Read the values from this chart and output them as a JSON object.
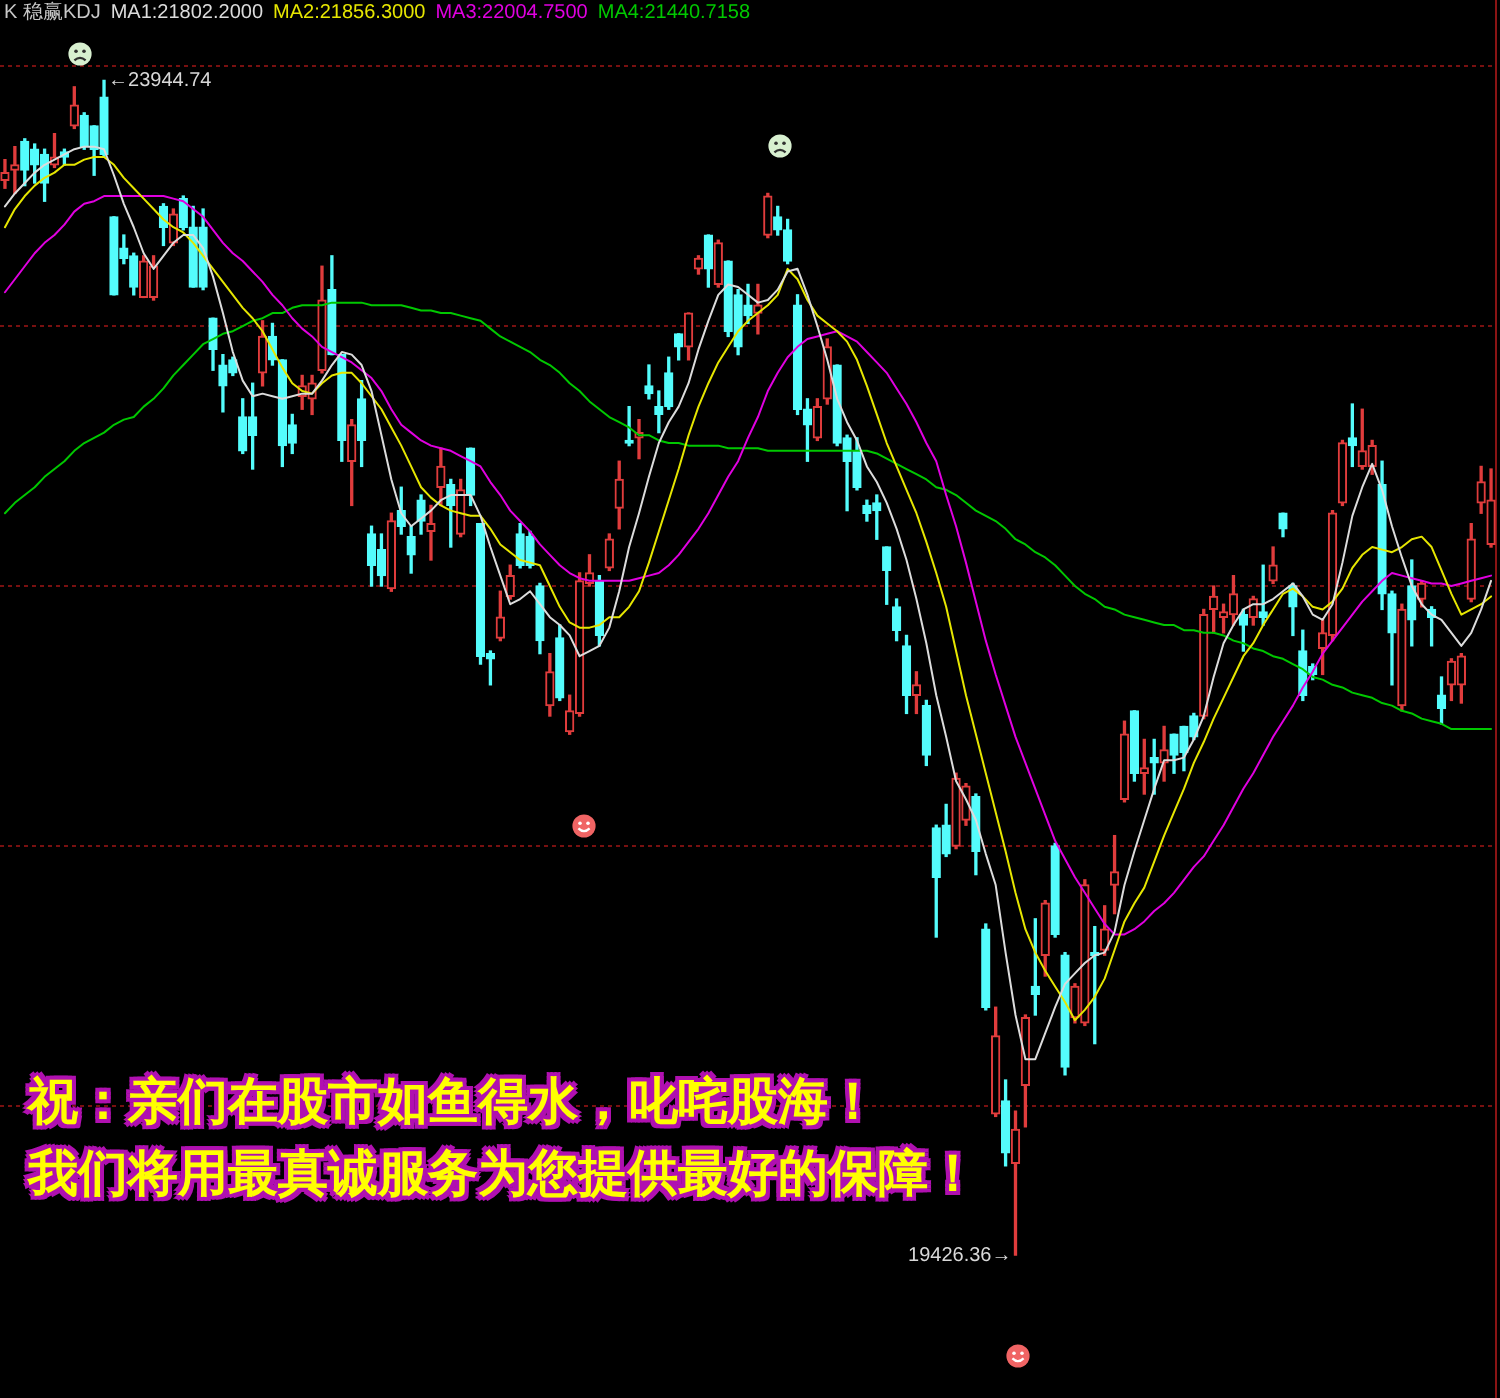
{
  "chart_data": {
    "type": "candlestick",
    "title": "K 稳赢KDJ",
    "categories": [
      null,
      null,
      null,
      null,
      null,
      null,
      null,
      null,
      null,
      null,
      null,
      null,
      null,
      null,
      null,
      null,
      null,
      null,
      null,
      null,
      null,
      null,
      null,
      null,
      null,
      null,
      null,
      null,
      null,
      null,
      null,
      null,
      null,
      null,
      null,
      null,
      null,
      null,
      null,
      null,
      null,
      null,
      null,
      null,
      null,
      null,
      null,
      null,
      null,
      null,
      null,
      null,
      null,
      null,
      null,
      null,
      null,
      null,
      null,
      null,
      null,
      null,
      null,
      null,
      null,
      null,
      null,
      null,
      null,
      null,
      null,
      null,
      null,
      null,
      null,
      null,
      null,
      null,
      null,
      null,
      null,
      null,
      null,
      null,
      null,
      null,
      null,
      null,
      null,
      null,
      null,
      null,
      null,
      null,
      null,
      null,
      null,
      null,
      null,
      null,
      null,
      null,
      null,
      null,
      null,
      null,
      null,
      null,
      null,
      null,
      null,
      null,
      null,
      null,
      null,
      null,
      null,
      null,
      null,
      null,
      null,
      null,
      null,
      null,
      null,
      null,
      null,
      null,
      null,
      null,
      null,
      null,
      null,
      null,
      null,
      null,
      null,
      null,
      null,
      null,
      null,
      null,
      null,
      null,
      null,
      null,
      null,
      null,
      null,
      null,
      null
    ],
    "ohlc": [
      [
        23560,
        23640,
        23530,
        23590
      ],
      [
        23600,
        23690,
        23510,
        23620
      ],
      [
        23710,
        23720,
        23540,
        23600
      ],
      [
        23680,
        23700,
        23550,
        23620
      ],
      [
        23660,
        23680,
        23480,
        23550
      ],
      [
        23620,
        23740,
        23610,
        23650
      ],
      [
        23670,
        23680,
        23620,
        23650
      ],
      [
        23770,
        23920,
        23760,
        23850
      ],
      [
        23810,
        23820,
        23680,
        23690
      ],
      [
        23770,
        23770,
        23580,
        23680
      ],
      [
        23880,
        23944.74,
        23650,
        23660
      ],
      [
        23420,
        23420,
        23120,
        23120
      ],
      [
        23300,
        23350,
        23240,
        23260
      ],
      [
        23270,
        23280,
        23120,
        23150
      ],
      [
        23110,
        23270,
        23110,
        23250
      ],
      [
        23110,
        23270,
        23100,
        23230
      ],
      [
        23460,
        23470,
        23310,
        23380
      ],
      [
        23320,
        23450,
        23310,
        23430
      ],
      [
        23490,
        23500,
        23370,
        23380
      ],
      [
        23380,
        23460,
        23150,
        23150
      ],
      [
        23380,
        23450,
        23140,
        23150
      ],
      [
        23030,
        23030,
        22830,
        22910
      ],
      [
        22850,
        22890,
        22670,
        22770
      ],
      [
        22870,
        22880,
        22810,
        22820
      ],
      [
        22650,
        22720,
        22510,
        22520
      ],
      [
        22650,
        22780,
        22450,
        22580
      ],
      [
        22820,
        23020,
        22770,
        22960
      ],
      [
        22960,
        23010,
        22850,
        22870
      ],
      [
        22870,
        22870,
        22460,
        22540
      ],
      [
        22620,
        22660,
        22510,
        22550
      ],
      [
        22730,
        22810,
        22680,
        22770
      ],
      [
        22720,
        22810,
        22660,
        22780
      ],
      [
        22830,
        23230,
        22820,
        23100
      ],
      [
        23140,
        23270,
        22890,
        22890
      ],
      [
        22890,
        22890,
        22480,
        22560
      ],
      [
        22480,
        22640,
        22310,
        22620
      ],
      [
        22720,
        22790,
        22460,
        22560
      ],
      [
        22200,
        22230,
        22000,
        22080
      ],
      [
        22140,
        22200,
        22000,
        22040
      ],
      [
        21990,
        22280,
        21980,
        22250
      ],
      [
        22290,
        22380,
        22200,
        22230
      ],
      [
        22190,
        22230,
        22050,
        22120
      ],
      [
        22330,
        22350,
        22200,
        22250
      ],
      [
        22210,
        22310,
        22100,
        22240
      ],
      [
        22380,
        22530,
        22310,
        22460
      ],
      [
        22390,
        22410,
        22150,
        22310
      ],
      [
        22200,
        22410,
        22190,
        22370
      ],
      [
        22530,
        22530,
        22310,
        22350
      ],
      [
        22240,
        22240,
        21700,
        21730
      ],
      [
        21740,
        21750,
        21620,
        21720
      ],
      [
        21800,
        21980,
        21790,
        21880
      ],
      [
        21960,
        22080,
        21950,
        22040
      ],
      [
        22200,
        22240,
        22070,
        22080
      ],
      [
        22190,
        22210,
        22070,
        22080
      ],
      [
        22000,
        22010,
        21740,
        21790
      ],
      [
        21540,
        21740,
        21500,
        21670
      ],
      [
        21800,
        21850,
        21560,
        21570
      ],
      [
        21440,
        21580,
        21430,
        21520
      ],
      [
        21510,
        22050,
        21500,
        22020
      ],
      [
        22010,
        22120,
        22000,
        22050
      ],
      [
        22020,
        22040,
        21770,
        21810
      ],
      [
        22070,
        22200,
        22060,
        22180
      ],
      [
        22300,
        22480,
        22220,
        22410
      ],
      [
        22560,
        22690,
        22540,
        22550
      ],
      [
        22570,
        22640,
        22490,
        22590
      ],
      [
        22770,
        22850,
        22720,
        22740
      ],
      [
        22690,
        22750,
        22590,
        22660
      ],
      [
        22820,
        22880,
        22680,
        22690
      ],
      [
        22970,
        22970,
        22870,
        22920
      ],
      [
        22920,
        23050,
        22870,
        23050
      ],
      [
        23220,
        23270,
        23200,
        23260
      ],
      [
        23350,
        23350,
        23150,
        23220
      ],
      [
        23160,
        23330,
        23150,
        23320
      ],
      [
        23250,
        23250,
        22960,
        22980
      ],
      [
        23120,
        23140,
        22890,
        22920
      ],
      [
        23080,
        23160,
        23010,
        23040
      ],
      [
        23050,
        23160,
        22970,
        23080
      ],
      [
        23350,
        23510,
        23340,
        23500
      ],
      [
        23420,
        23460,
        23350,
        23370
      ],
      [
        23370,
        23410,
        23240,
        23250
      ],
      [
        23080,
        23120,
        22660,
        22680
      ],
      [
        22680,
        22720,
        22480,
        22620
      ],
      [
        22570,
        22720,
        22560,
        22690
      ],
      [
        22720,
        22950,
        22700,
        22920
      ],
      [
        22850,
        22850,
        22540,
        22550
      ],
      [
        22570,
        22580,
        22290,
        22480
      ],
      [
        22520,
        22570,
        22370,
        22380
      ],
      [
        22310,
        22330,
        22250,
        22280
      ],
      [
        22320,
        22350,
        22180,
        22290
      ],
      [
        22150,
        22150,
        21930,
        22060
      ],
      [
        21920,
        21950,
        21790,
        21830
      ],
      [
        21770,
        21810,
        21510,
        21580
      ],
      [
        21580,
        21670,
        21510,
        21620
      ],
      [
        21540,
        21560,
        21310,
        21350
      ],
      [
        21070,
        21080,
        20650,
        20880
      ],
      [
        21080,
        21160,
        20960,
        20970
      ],
      [
        21000,
        21280,
        20990,
        21260
      ],
      [
        21100,
        21240,
        21080,
        21230
      ],
      [
        21190,
        21200,
        20890,
        20980
      ],
      [
        20680,
        20700,
        20370,
        20380
      ],
      [
        19970,
        20380,
        19960,
        20270
      ],
      [
        20020,
        20100,
        19770,
        19820
      ],
      [
        19780,
        19980,
        19426.36,
        19910
      ],
      [
        20080,
        20350,
        19920,
        20340
      ],
      [
        20460,
        20720,
        20350,
        20430
      ],
      [
        20580,
        20790,
        20500,
        20780
      ],
      [
        21000,
        21010,
        20650,
        20660
      ],
      [
        20580,
        20590,
        20120,
        20150
      ],
      [
        20340,
        20470,
        20320,
        20460
      ],
      [
        20320,
        20870,
        20310,
        20850
      ],
      [
        20590,
        20690,
        20240,
        20580
      ],
      [
        20600,
        20770,
        20580,
        20680
      ],
      [
        20850,
        21040,
        20740,
        20900
      ],
      [
        21180,
        21480,
        21170,
        21430
      ],
      [
        21520,
        21520,
        21250,
        21280
      ],
      [
        21280,
        21410,
        21200,
        21300
      ],
      [
        21340,
        21410,
        21200,
        21320
      ],
      [
        21320,
        21460,
        21250,
        21370
      ],
      [
        21430,
        21430,
        21280,
        21350
      ],
      [
        21460,
        21460,
        21290,
        21360
      ],
      [
        21500,
        21510,
        21410,
        21420
      ],
      [
        21500,
        21910,
        21490,
        21890
      ],
      [
        21910,
        22000,
        21820,
        21960
      ],
      [
        21880,
        21930,
        21820,
        21900
      ],
      [
        21890,
        22040,
        21850,
        21970
      ],
      [
        21890,
        21910,
        21750,
        21850
      ],
      [
        21880,
        21960,
        21850,
        21950
      ],
      [
        21900,
        22080,
        21850,
        21880
      ],
      [
        22020,
        22150,
        22010,
        22080
      ],
      [
        22280,
        22280,
        22190,
        22220
      ],
      [
        22000,
        22010,
        21810,
        21920
      ],
      [
        21750,
        21830,
        21560,
        21580
      ],
      [
        21690,
        21700,
        21640,
        21660
      ],
      [
        21760,
        21870,
        21660,
        21820
      ],
      [
        21810,
        22290,
        21790,
        22280
      ],
      [
        22320,
        22560,
        22310,
        22550
      ],
      [
        22570,
        22700,
        22460,
        22540
      ],
      [
        22460,
        22680,
        22450,
        22520
      ],
      [
        22460,
        22560,
        22430,
        22540
      ],
      [
        22390,
        22480,
        21910,
        21970
      ],
      [
        21970,
        21980,
        21620,
        21820
      ],
      [
        21540,
        21930,
        21520,
        21910
      ],
      [
        22000,
        22100,
        21770,
        21870
      ],
      [
        21950,
        22020,
        21920,
        22010
      ],
      [
        21910,
        21920,
        21770,
        21880
      ],
      [
        21580,
        21650,
        21470,
        21530
      ],
      [
        21620,
        21720,
        21560,
        21710
      ],
      [
        21620,
        21740,
        21550,
        21730
      ],
      [
        21950,
        22240,
        21940,
        22180
      ],
      [
        22320,
        22460,
        22280,
        22400
      ],
      [
        22160,
        22450,
        22150,
        22330
      ]
    ],
    "colors": [
      "#e03c3c",
      "#e03c3c",
      "#54fcfc",
      "#54fcfc",
      "#54fcfc",
      "#e03c3c",
      "#54fcfc",
      "#e03c3c",
      "#54fcfc",
      "#54fcfc",
      "#54fcfc",
      "#54fcfc",
      "#54fcfc",
      "#54fcfc",
      "#e03c3c",
      "#e03c3c",
      "#54fcfc",
      "#e03c3c",
      "#54fcfc",
      "#54fcfc",
      "#54fcfc",
      "#54fcfc",
      "#54fcfc",
      "#54fcfc",
      "#54fcfc",
      "#54fcfc",
      "#e03c3c",
      "#54fcfc",
      "#54fcfc",
      "#54fcfc",
      "#e03c3c",
      "#e03c3c",
      "#e03c3c",
      "#54fcfc",
      "#54fcfc",
      "#e03c3c",
      "#54fcfc",
      "#54fcfc",
      "#54fcfc",
      "#e03c3c",
      "#54fcfc",
      "#54fcfc",
      "#54fcfc",
      "#e03c3c",
      "#e03c3c",
      "#54fcfc",
      "#e03c3c",
      "#54fcfc",
      "#54fcfc",
      "#54fcfc",
      "#e03c3c",
      "#e03c3c",
      "#54fcfc",
      "#54fcfc",
      "#54fcfc",
      "#e03c3c",
      "#54fcfc",
      "#e03c3c",
      "#e03c3c",
      "#e03c3c",
      "#54fcfc",
      "#e03c3c",
      "#e03c3c",
      "#54fcfc",
      "#e03c3c",
      "#54fcfc",
      "#54fcfc",
      "#54fcfc",
      "#54fcfc",
      "#e03c3c",
      "#e03c3c",
      "#54fcfc",
      "#e03c3c",
      "#54fcfc",
      "#54fcfc",
      "#54fcfc",
      "#e03c3c",
      "#e03c3c",
      "#54fcfc",
      "#54fcfc",
      "#54fcfc",
      "#54fcfc",
      "#e03c3c",
      "#e03c3c",
      "#54fcfc",
      "#54fcfc",
      "#54fcfc",
      "#54fcfc",
      "#54fcfc",
      "#54fcfc",
      "#54fcfc",
      "#54fcfc",
      "#e03c3c",
      "#54fcfc",
      "#54fcfc",
      "#54fcfc",
      "#e03c3c",
      "#e03c3c",
      "#54fcfc",
      "#54fcfc",
      "#e03c3c",
      "#54fcfc",
      "#e03c3c",
      "#e03c3c",
      "#54fcfc",
      "#e03c3c",
      "#54fcfc",
      "#54fcfc",
      "#e03c3c",
      "#e03c3c",
      "#54fcfc",
      "#e03c3c",
      "#e03c3c",
      "#e03c3c",
      "#54fcfc",
      "#e03c3c",
      "#54fcfc",
      "#e03c3c",
      "#54fcfc",
      "#54fcfc",
      "#54fcfc",
      "#e03c3c",
      "#e03c3c",
      "#e03c3c",
      "#e03c3c",
      "#54fcfc",
      "#e03c3c",
      "#54fcfc",
      "#e03c3c",
      "#54fcfc",
      "#54fcfc",
      "#54fcfc",
      "#54fcfc",
      "#e03c3c",
      "#e03c3c",
      "#e03c3c",
      "#54fcfc",
      "#e03c3c",
      "#e03c3c",
      "#54fcfc",
      "#54fcfc",
      "#e03c3c",
      "#54fcfc",
      "#e03c3c",
      "#54fcfc",
      "#54fcfc",
      "#e03c3c",
      "#e03c3c",
      "#e03c3c",
      "#e03c3c",
      "#e03c3c"
    ],
    "series": [
      {
        "type": "line",
        "name": "MA1:21802.2000",
        "color": "#dcdcdc",
        "values": [
          23460,
          23510,
          23550,
          23590,
          23620,
          23640,
          23660,
          23680,
          23690,
          23690,
          23680,
          23580,
          23470,
          23380,
          23280,
          23220,
          23270,
          23320,
          23350,
          23350,
          23300,
          23190,
          23050,
          22900,
          22790,
          22730,
          22740,
          22730,
          22720,
          22730,
          22740,
          22740,
          22790,
          22850,
          22900,
          22890,
          22850,
          22750,
          22580,
          22410,
          22280,
          22230,
          22260,
          22290,
          22330,
          22350,
          22350,
          22350,
          22270,
          22150,
          22040,
          21930,
          21950,
          21980,
          21930,
          21880,
          21850,
          21810,
          21730,
          21750,
          21770,
          21840,
          21980,
          22150,
          22280,
          22420,
          22550,
          22630,
          22690,
          22780,
          22910,
          23020,
          23120,
          23160,
          23150,
          23120,
          23090,
          23100,
          23140,
          23210,
          23220,
          23120,
          23000,
          22870,
          22720,
          22630,
          22560,
          22460,
          22400,
          22320,
          22220,
          22100,
          21950,
          21780,
          21580,
          21420,
          21250,
          21180,
          21100,
          20970,
          20850,
          20590,
          20350,
          20180,
          20180,
          20280,
          20380,
          20470,
          20510,
          20550,
          20580,
          20590,
          20670,
          20850,
          20980,
          21100,
          21220,
          21330,
          21330,
          21340,
          21410,
          21500,
          21650,
          21780,
          21850,
          21910,
          21930,
          21930,
          21950,
          21980,
          22010,
          21960,
          21890,
          21870,
          21930,
          22090,
          22270,
          22380,
          22470,
          22370,
          22230,
          22110,
          22000,
          21930,
          21890,
          21870,
          21820,
          21770,
          21820,
          21910,
          22020
        ]
      },
      {
        "type": "line",
        "name": "MA2:21856.3000",
        "color": "#e6e600",
        "values": [
          23380,
          23450,
          23500,
          23540,
          23570,
          23590,
          23620,
          23620,
          23640,
          23650,
          23650,
          23620,
          23570,
          23530,
          23490,
          23450,
          23410,
          23380,
          23360,
          23320,
          23270,
          23220,
          23170,
          23120,
          23070,
          23030,
          22980,
          22910,
          22840,
          22780,
          22750,
          22740,
          22780,
          22810,
          22820,
          22820,
          22780,
          22730,
          22680,
          22610,
          22540,
          22460,
          22380,
          22340,
          22310,
          22290,
          22280,
          22270,
          22270,
          22220,
          22160,
          22130,
          22100,
          22090,
          22080,
          22000,
          21920,
          21860,
          21840,
          21840,
          21850,
          21880,
          21880,
          21920,
          21980,
          22090,
          22210,
          22330,
          22450,
          22580,
          22690,
          22780,
          22860,
          22920,
          22980,
          23020,
          23050,
          23080,
          23120,
          23220,
          23180,
          23100,
          23040,
          23010,
          22980,
          22940,
          22870,
          22770,
          22660,
          22550,
          22460,
          22370,
          22280,
          22170,
          22050,
          21920,
          21750,
          21580,
          21430,
          21280,
          21130,
          20980,
          20820,
          20680,
          20590,
          20520,
          20460,
          20400,
          20330,
          20370,
          20420,
          20490,
          20600,
          20710,
          20780,
          20840,
          20940,
          21040,
          21130,
          21220,
          21320,
          21400,
          21490,
          21570,
          21650,
          21730,
          21780,
          21850,
          21910,
          21970,
          21990,
          21960,
          21920,
          21910,
          21940,
          21990,
          22070,
          22120,
          22150,
          22140,
          22130,
          22150,
          22180,
          22190,
          22150,
          22060,
          21970,
          21890,
          21910,
          21930,
          21960
        ]
      },
      {
        "type": "line",
        "name": "MA3:22004.7500",
        "color": "#e000e0",
        "values": [
          23130,
          23180,
          23230,
          23280,
          23320,
          23350,
          23390,
          23440,
          23470,
          23480,
          23500,
          23500,
          23500,
          23500,
          23500,
          23500,
          23500,
          23490,
          23480,
          23450,
          23420,
          23370,
          23320,
          23280,
          23250,
          23210,
          23170,
          23120,
          23080,
          23030,
          22990,
          22960,
          22920,
          22900,
          22880,
          22860,
          22830,
          22800,
          22750,
          22680,
          22620,
          22590,
          22560,
          22540,
          22530,
          22520,
          22500,
          22480,
          22460,
          22400,
          22350,
          22290,
          22250,
          22210,
          22160,
          22120,
          22080,
          22050,
          22030,
          22020,
          22020,
          22020,
          22020,
          22020,
          22030,
          22040,
          22050,
          22080,
          22120,
          22170,
          22220,
          22280,
          22350,
          22420,
          22480,
          22570,
          22650,
          22750,
          22820,
          22880,
          22920,
          22950,
          22960,
          22970,
          22980,
          22960,
          22940,
          22900,
          22860,
          22820,
          22760,
          22700,
          22630,
          22550,
          22480,
          22350,
          22230,
          22090,
          21940,
          21790,
          21660,
          21540,
          21420,
          21320,
          21220,
          21120,
          21020,
          20950,
          20880,
          20820,
          20760,
          20700,
          20660,
          20660,
          20680,
          20710,
          20750,
          20780,
          20820,
          20870,
          20920,
          20960,
          21020,
          21080,
          21150,
          21220,
          21280,
          21350,
          21420,
          21480,
          21540,
          21610,
          21670,
          21740,
          21790,
          21840,
          21890,
          21940,
          21980,
          22020,
          22050,
          22040,
          22030,
          22020,
          22010,
          22010,
          22000,
          22010,
          22020,
          22030,
          22040
        ]
      },
      {
        "type": "line",
        "name": "MA4:21440.7158",
        "color": "#00c800",
        "values": [
          22280,
          22320,
          22350,
          22380,
          22420,
          22450,
          22480,
          22520,
          22550,
          22570,
          22590,
          22620,
          22640,
          22650,
          22690,
          22720,
          22760,
          22810,
          22850,
          22890,
          22930,
          22950,
          22970,
          22980,
          23000,
          23020,
          23030,
          23050,
          23050,
          23070,
          23080,
          23080,
          23080,
          23090,
          23090,
          23090,
          23090,
          23080,
          23080,
          23080,
          23080,
          23070,
          23060,
          23060,
          23050,
          23050,
          23040,
          23030,
          23020,
          22990,
          22960,
          22940,
          22920,
          22900,
          22870,
          22850,
          22820,
          22780,
          22750,
          22710,
          22680,
          22650,
          22630,
          22610,
          22580,
          22580,
          22560,
          22550,
          22550,
          22540,
          22540,
          22540,
          22540,
          22530,
          22530,
          22530,
          22530,
          22520,
          22520,
          22520,
          22520,
          22520,
          22520,
          22520,
          22520,
          22520,
          22520,
          22520,
          22510,
          22490,
          22470,
          22450,
          22430,
          22410,
          22380,
          22370,
          22350,
          22320,
          22290,
          22270,
          22250,
          22220,
          22180,
          22160,
          22130,
          22110,
          22080,
          22040,
          22000,
          21970,
          21950,
          21920,
          21910,
          21890,
          21880,
          21870,
          21860,
          21850,
          21850,
          21830,
          21830,
          21820,
          21820,
          21810,
          21790,
          21780,
          21760,
          21750,
          21730,
          21720,
          21700,
          21680,
          21650,
          21640,
          21620,
          21610,
          21590,
          21580,
          21570,
          21550,
          21540,
          21520,
          21510,
          21490,
          21480,
          21470,
          21450,
          21450,
          21450,
          21450,
          21450
        ]
      }
    ],
    "ylim": [
      18877,
      24254
    ],
    "yticks": [
      {
        "value": 24000,
        "label": null
      },
      {
        "value": 23000,
        "label": null
      },
      {
        "value": 22000,
        "label": null
      },
      {
        "value": 21000,
        "label": null
      },
      {
        "value": 20000,
        "label": null
      }
    ],
    "grid": "y",
    "tick_labels": false,
    "legend": "top left",
    "marker": "none",
    "annotations": [
      "←23944.74",
      "19426.36→",
      "祝：亲们在股市如鱼得水，叱咤股海！",
      "我们将用最真诚服务为您提供最好的保障！"
    ]
  }
}
